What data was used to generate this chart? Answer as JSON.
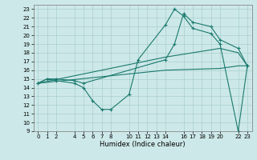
{
  "xlabel": "Humidex (Indice chaleur)",
  "xlim": [
    -0.5,
    23.5
  ],
  "ylim": [
    9,
    23.5
  ],
  "xticks": [
    0,
    1,
    2,
    4,
    5,
    6,
    7,
    8,
    10,
    11,
    12,
    13,
    14,
    16,
    17,
    18,
    19,
    20,
    22,
    23
  ],
  "yticks": [
    9,
    10,
    11,
    12,
    13,
    14,
    15,
    16,
    17,
    18,
    19,
    20,
    21,
    22,
    23
  ],
  "bg_color": "#cde8e8",
  "line_color": "#1a7a6e",
  "grid_color": "#aacfcf",
  "series": [
    {
      "x": [
        0,
        1,
        2,
        4,
        5,
        6,
        7,
        8,
        10,
        11,
        14,
        15,
        16,
        17,
        19,
        20,
        22,
        23
      ],
      "y": [
        14.5,
        15.0,
        14.8,
        14.5,
        14.0,
        12.5,
        11.5,
        11.5,
        13.2,
        17.2,
        21.2,
        23.0,
        22.2,
        20.8,
        20.2,
        19.0,
        9.0,
        16.5
      ],
      "marker": "+"
    },
    {
      "x": [
        0,
        1,
        2,
        4,
        5,
        14,
        15,
        16,
        17,
        19,
        20,
        22,
        23
      ],
      "y": [
        14.5,
        15.0,
        15.0,
        14.8,
        14.5,
        17.2,
        19.0,
        22.5,
        21.5,
        21.0,
        19.5,
        18.5,
        16.5
      ],
      "marker": "+"
    },
    {
      "x": [
        0,
        14,
        20,
        22,
        23
      ],
      "y": [
        14.5,
        17.5,
        18.5,
        18.0,
        16.5
      ],
      "marker": null
    },
    {
      "x": [
        0,
        14,
        20,
        22,
        23
      ],
      "y": [
        14.5,
        16.0,
        16.2,
        16.5,
        16.5
      ],
      "marker": null
    }
  ]
}
